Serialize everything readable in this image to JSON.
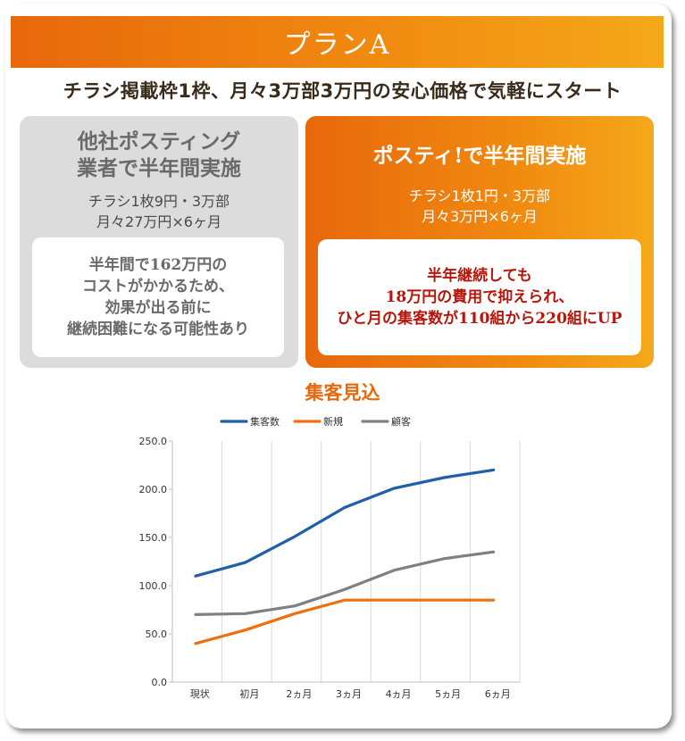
{
  "header": {
    "title": "プランA"
  },
  "subtitle": "チラシ掲載枠1枠、月々3万部3万円の安心価格で気軽にスタート",
  "left_box": {
    "title_lines": [
      "他社ポスティング",
      "業者で半年間実施"
    ],
    "sub_lines": [
      "チラシ1枚9円・3万部",
      "月々27万円×6ヶ月"
    ],
    "note_lines": [
      "半年間で162万円の",
      "コストがかかるため、",
      "効果が出る前に",
      "継続困難になる可能性あり"
    ]
  },
  "right_box": {
    "title_lines": [
      "ポスティ!で半年間実施"
    ],
    "sub_lines": [
      "チラシ1枚1円・3万部",
      "月々3万円×6ヶ月"
    ],
    "note_lines": [
      "半年継続しても",
      "18万円の費用で抑えられ、",
      "ひと月の集客数が110組から220組にUP"
    ]
  },
  "chart_data": {
    "type": "line",
    "title": "集客見込",
    "categories": [
      "現状",
      "初月",
      "2ヵ月",
      "3ヵ月",
      "4ヵ月",
      "5ヵ月",
      "6ヵ月"
    ],
    "series": [
      {
        "name": "集客数",
        "color": "#1f5fa6",
        "values": [
          110,
          124,
          151,
          181,
          201,
          212,
          220
        ]
      },
      {
        "name": "新規",
        "color": "#ee6f10",
        "values": [
          40,
          54,
          71,
          85,
          85,
          85,
          85
        ]
      },
      {
        "name": "顧客",
        "color": "#808080",
        "values": [
          70,
          71,
          79,
          96,
          116,
          128,
          135
        ]
      }
    ],
    "y_ticks": [
      "250.0",
      "200.0",
      "150.0",
      "100.0",
      "50.0",
      "0.0"
    ],
    "ylim": [
      0,
      250
    ],
    "grid": "vertical",
    "legend": "top"
  }
}
